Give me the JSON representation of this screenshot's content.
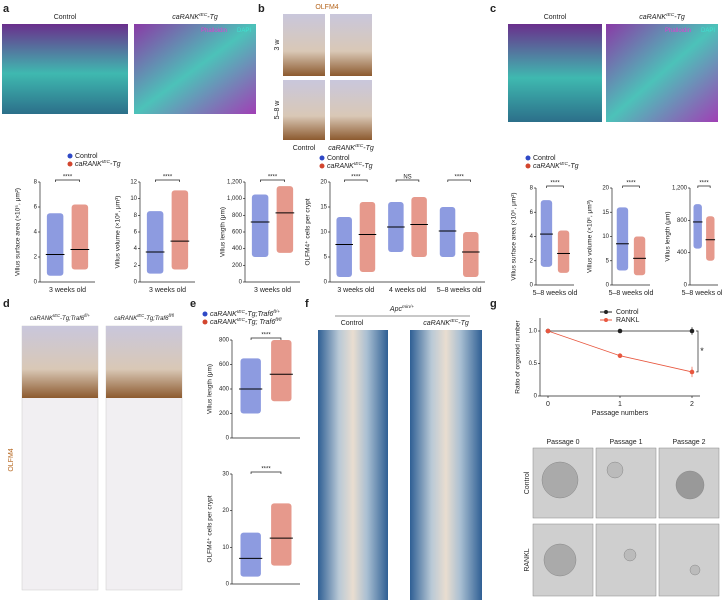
{
  "figure": {
    "texts": [
      "a",
      "b",
      "c",
      "d",
      "e",
      "f",
      "g",
      [
        {
          "t": "Control"
        }
      ],
      [
        {
          "t": "caRANK"
        },
        {
          "t": "IEC",
          "sup": true
        },
        {
          "t": "-Tg"
        }
      ],
      [
        {
          "t": "Phalloidin"
        }
      ],
      [
        {
          "t": "DAPI"
        }
      ],
      [
        {
          "t": "OLFM4"
        }
      ],
      [
        {
          "t": "3 w"
        }
      ],
      [
        {
          "t": "5–8 w"
        }
      ],
      [
        {
          "t": "Control"
        }
      ],
      [
        {
          "t": "caRANK"
        },
        {
          "t": "IEC",
          "sup": true
        },
        {
          "t": "-Tg"
        }
      ],
      [
        {
          "t": "Control"
        }
      ],
      [
        {
          "t": "caRANK"
        },
        {
          "t": "IEC",
          "sup": true
        },
        {
          "t": "-Tg"
        }
      ],
      [
        {
          "t": "Phalloidin"
        }
      ],
      [
        {
          "t": "DAPI"
        }
      ],
      [
        {
          "t": "caRANK"
        },
        {
          "t": "IEC",
          "sup": true
        },
        {
          "t": "-Tg;Traf6"
        },
        {
          "t": "fl/+",
          "sup": true
        }
      ],
      [
        {
          "t": "caRANK"
        },
        {
          "t": "IEC",
          "sup": true
        },
        {
          "t": "-Tg;Traf6"
        },
        {
          "t": "fl/fl",
          "sup": true
        }
      ],
      [
        {
          "t": "OLFM4"
        }
      ],
      [
        {
          "t": "Apc"
        },
        {
          "t": "min/+",
          "sup": true
        }
      ],
      [
        {
          "t": "Control"
        }
      ],
      [
        {
          "t": "caRANK"
        },
        {
          "t": "IEC",
          "sup": true
        },
        {
          "t": "-Tg"
        }
      ],
      [
        {
          "t": "Passage 0"
        }
      ],
      [
        {
          "t": "Passage 1"
        }
      ],
      [
        {
          "t": "Passage 2"
        }
      ],
      [
        {
          "t": "Control"
        }
      ],
      [
        {
          "t": "RANKL"
        }
      ]
    ],
    "legends": [
      [
        {
          "color": "#2f49c6",
          "parts": [
            {
              "t": "Control"
            }
          ]
        },
        {
          "color": "#d2452e",
          "parts": [
            {
              "t": "caRANK"
            },
            {
              "t": "IEC",
              "sup": true
            },
            {
              "t": "-Tg"
            }
          ]
        }
      ],
      [
        {
          "color": "#2f49c6",
          "parts": [
            {
              "t": "Control"
            }
          ]
        },
        {
          "color": "#d2452e",
          "parts": [
            {
              "t": "caRANK"
            },
            {
              "t": "IEC",
              "sup": true
            },
            {
              "t": "-Tg"
            }
          ]
        }
      ],
      [
        {
          "color": "#2f49c6",
          "parts": [
            {
              "t": "Control"
            }
          ]
        },
        {
          "color": "#d2452e",
          "parts": [
            {
              "t": "caRANK"
            },
            {
              "t": "IEC",
              "sup": true
            },
            {
              "t": "-Tg"
            }
          ]
        }
      ],
      [
        {
          "color": "#2f49c6",
          "parts": [
            {
              "t": "caRANK"
            },
            {
              "t": "IEC",
              "sup": true
            },
            {
              "t": "-Tg;Traf6"
            },
            {
              "t": "fl/+",
              "sup": true
            }
          ]
        },
        {
          "color": "#d2452e",
          "parts": [
            {
              "t": "caRANK"
            },
            {
              "t": "IEC",
              "sup": true
            },
            {
              "t": "-Tg; Traf6"
            },
            {
              "t": "fl/fl",
              "sup": true
            }
          ]
        }
      ]
    ]
  },
  "chart_data": [
    {
      "type": "dot",
      "ylabel": "Villus surface area (×10⁵, μm²)",
      "categories": [
        "3 weeks old"
      ],
      "ylim": [
        0,
        8
      ],
      "yticks": [
        0,
        2,
        4,
        6,
        8
      ],
      "series": [
        {
          "color": "#2f49c6",
          "values": [
            2.2
          ],
          "ranges": [
            [
              0.5,
              5.5
            ]
          ]
        },
        {
          "color": "#d2452e",
          "values": [
            2.6
          ],
          "ranges": [
            [
              1,
              6.2
            ]
          ]
        }
      ],
      "annotations": [
        "****"
      ]
    },
    {
      "type": "dot",
      "ylabel": "Villus volume (×10⁶, μm³)",
      "categories": [
        "3 weeks old"
      ],
      "ylim": [
        0,
        12
      ],
      "yticks": [
        0,
        2,
        4,
        6,
        8,
        10,
        12
      ],
      "series": [
        {
          "color": "#2f49c6",
          "values": [
            3.6
          ],
          "ranges": [
            [
              1,
              8.5
            ]
          ]
        },
        {
          "color": "#d2452e",
          "values": [
            4.9
          ],
          "ranges": [
            [
              1.5,
              11
            ]
          ]
        }
      ],
      "annotations": [
        "****"
      ]
    },
    {
      "type": "dot",
      "ylabel": "Villus length (μm)",
      "categories": [
        "3 weeks old"
      ],
      "ylim": [
        0,
        1200
      ],
      "yticks": [
        0,
        200,
        400,
        600,
        800,
        {
          "value": 1000,
          "label": "1,000"
        },
        {
          "value": 1200,
          "label": "1,200"
        }
      ],
      "series": [
        {
          "color": "#2f49c6",
          "values": [
            720
          ],
          "ranges": [
            [
              300,
              1050
            ]
          ]
        },
        {
          "color": "#d2452e",
          "values": [
            830
          ],
          "ranges": [
            [
              350,
              1150
            ]
          ]
        }
      ],
      "annotations": [
        "****"
      ]
    },
    {
      "type": "dot",
      "ylabel": "OLFM4⁺ cells per crypt",
      "categories": [
        "3 weeks old",
        "4 weeks old",
        "5–8 weeks old"
      ],
      "ylim": [
        0,
        20
      ],
      "yticks": [
        0,
        5,
        10,
        15,
        20
      ],
      "series": [
        {
          "color": "#2f49c6",
          "values": [
            7.5,
            11,
            10.2
          ],
          "ranges": [
            [
              1,
              13
            ],
            [
              6,
              16
            ],
            [
              5,
              15
            ]
          ]
        },
        {
          "color": "#d2452e",
          "values": [
            9.5,
            11.5,
            6
          ],
          "ranges": [
            [
              2,
              16
            ],
            [
              5,
              17
            ],
            [
              1,
              10
            ]
          ]
        }
      ],
      "annotations": [
        "****",
        "NS",
        "****"
      ]
    },
    {
      "type": "dot",
      "ylabel": "Villus surface area (×10⁵, μm²)",
      "categories": [
        "5–8 weeks old"
      ],
      "ylim": [
        0,
        8
      ],
      "yticks": [
        0,
        2,
        4,
        6,
        8
      ],
      "series": [
        {
          "color": "#2f49c6",
          "values": [
            4.2
          ],
          "ranges": [
            [
              1.5,
              7
            ]
          ]
        },
        {
          "color": "#d2452e",
          "values": [
            2.6
          ],
          "ranges": [
            [
              1,
              4.5
            ]
          ]
        }
      ],
      "annotations": [
        "****"
      ]
    },
    {
      "type": "dot",
      "ylabel": "Villus volume (×10⁶, μm³)",
      "categories": [
        "5–8 weeks old"
      ],
      "ylim": [
        0,
        20
      ],
      "yticks": [
        0,
        5,
        10,
        15,
        20
      ],
      "series": [
        {
          "color": "#2f49c6",
          "values": [
            8.5
          ],
          "ranges": [
            [
              3,
              16
            ]
          ]
        },
        {
          "color": "#d2452e",
          "values": [
            5.5
          ],
          "ranges": [
            [
              2,
              10
            ]
          ]
        }
      ],
      "annotations": [
        "****"
      ]
    },
    {
      "type": "dot",
      "ylabel": "Villus length (μm)",
      "categories": [
        "5–8 weeks old"
      ],
      "ylim": [
        0,
        1200
      ],
      "yticks": [
        0,
        400,
        800,
        {
          "value": 1200,
          "label": "1,200"
        }
      ],
      "series": [
        {
          "color": "#2f49c6",
          "values": [
            780
          ],
          "ranges": [
            [
              450,
              1000
            ]
          ]
        },
        {
          "color": "#d2452e",
          "values": [
            560
          ],
          "ranges": [
            [
              300,
              850
            ]
          ]
        }
      ],
      "annotations": [
        "****"
      ]
    },
    {
      "type": "dot",
      "ylabel": "Villus length (μm)",
      "categories": [
        null
      ],
      "ylim": [
        0,
        800
      ],
      "yticks": [
        0,
        200,
        400,
        600,
        800
      ],
      "series": [
        {
          "color": "#2f49c6",
          "values": [
            400
          ],
          "ranges": [
            [
              200,
              650
            ]
          ]
        },
        {
          "color": "#d2452e",
          "values": [
            520
          ],
          "ranges": [
            [
              300,
              800
            ]
          ]
        }
      ],
      "annotations": [
        "****"
      ]
    },
    {
      "type": "dot",
      "ylabel": "OLFM4⁺ cells per crypt",
      "categories": [
        null
      ],
      "ylim": [
        0,
        30
      ],
      "yticks": [
        0,
        10,
        20,
        30
      ],
      "series": [
        {
          "color": "#2f49c6",
          "values": [
            7
          ],
          "ranges": [
            [
              2,
              14
            ]
          ]
        },
        {
          "color": "#d2452e",
          "values": [
            12.5
          ],
          "ranges": [
            [
              5,
              22
            ]
          ]
        }
      ],
      "annotations": [
        "****"
      ]
    },
    {
      "type": "line",
      "ylabel": "Ratio of organoid number",
      "xlabel": "Passage numbers",
      "x": [
        0,
        1,
        2
      ],
      "xlim": [
        0,
        2
      ],
      "xticks": [
        0,
        1,
        2
      ],
      "ylim": [
        0,
        1.2
      ],
      "yticks": [
        0,
        0.5,
        {
          "value": 1,
          "label": "1.0"
        }
      ],
      "series": [
        {
          "name": "Control",
          "color": "#222222",
          "values": [
            1,
            1,
            1
          ],
          "errors": [
            0,
            0.02,
            0.06
          ]
        },
        {
          "name": "RANKL",
          "color": "#e8573f",
          "values": [
            1,
            0.62,
            0.37
          ],
          "errors": [
            0,
            0.03,
            0.08
          ]
        }
      ],
      "annotations": [
        "*"
      ]
    }
  ]
}
